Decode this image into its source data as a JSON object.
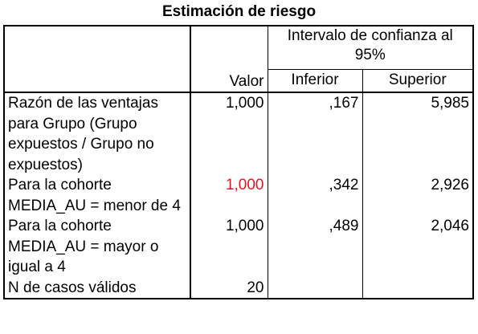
{
  "title": "Estimación de riesgo",
  "header": {
    "interval_label": "Intervalo de confianza al 95%",
    "valor": "Valor",
    "inferior": "Inferior",
    "superior": "Superior"
  },
  "rows": [
    {
      "label": "Razón de las ventajas para Grupo (Grupo expuestos / Grupo no expuestos)",
      "valor": "1,000",
      "inferior": ",167",
      "superior": "5,985"
    },
    {
      "label": "Para la cohorte MEDIA_AU = menor de 4",
      "valor": "1,000",
      "valor_color": "#e8141c",
      "inferior": ",342",
      "superior": "2,926"
    },
    {
      "label": "Para la cohorte MEDIA_AU = mayor o igual a 4",
      "valor": "1,000",
      "inferior": ",489",
      "superior": "2,046"
    },
    {
      "label": "N de casos válidos",
      "valor": "20",
      "inferior": "",
      "superior": ""
    }
  ]
}
